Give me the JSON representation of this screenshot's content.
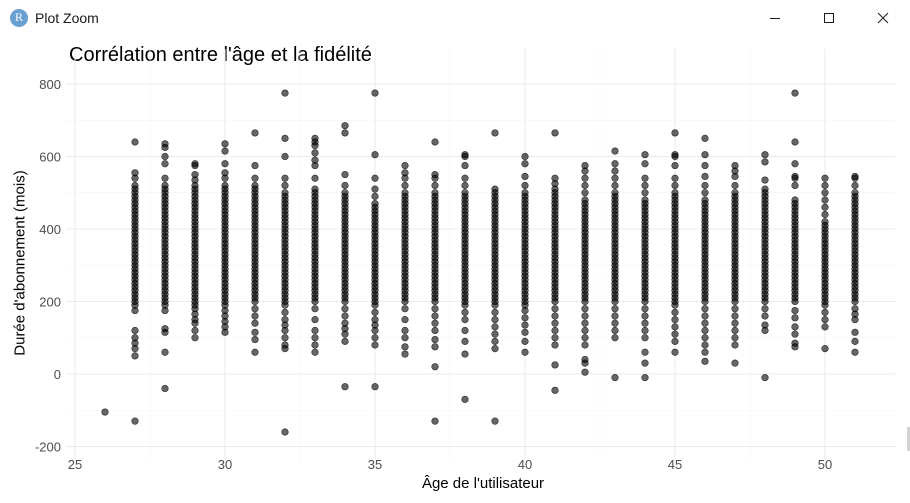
{
  "window": {
    "title": "Plot Zoom",
    "app_icon_letter": "R",
    "controls": [
      "minimize",
      "maximize",
      "close"
    ]
  },
  "chart_data": {
    "type": "scatter",
    "title": "Corrélation entre l'âge et la fidélité",
    "xlabel": "Âge de l'utilisateur",
    "ylabel": "Durée d'abonnement (mois)",
    "xlim": [
      25,
      52
    ],
    "ylim": [
      -200,
      800
    ],
    "xticks": [
      25,
      30,
      35,
      40,
      45,
      50
    ],
    "yticks": [
      -200,
      0,
      200,
      400,
      600,
      800
    ],
    "grid": true,
    "point_color": "#000000",
    "point_opacity": 0.6,
    "points_by_age": [
      {
        "x": 26,
        "y": [
          -105
        ]
      },
      {
        "x": 27,
        "y": [
          -130,
          50,
          70,
          85,
          100,
          120,
          175,
          190,
          200,
          210,
          220,
          230,
          240,
          250,
          260,
          270,
          280,
          290,
          300,
          310,
          320,
          330,
          340,
          350,
          360,
          370,
          380,
          390,
          400,
          410,
          420,
          430,
          440,
          450,
          460,
          470,
          480,
          490,
          500,
          510,
          520,
          540,
          555,
          640
        ]
      },
      {
        "x": 28,
        "y": [
          -40,
          60,
          115,
          125,
          175,
          190,
          200,
          210,
          220,
          230,
          240,
          250,
          260,
          270,
          280,
          290,
          300,
          310,
          320,
          330,
          340,
          350,
          360,
          370,
          380,
          390,
          400,
          410,
          420,
          430,
          440,
          450,
          460,
          470,
          480,
          490,
          500,
          510,
          520,
          540,
          580,
          600,
          625,
          635
        ]
      },
      {
        "x": 29,
        "y": [
          100,
          120,
          140,
          150,
          165,
          180,
          190,
          200,
          210,
          220,
          230,
          240,
          250,
          260,
          270,
          280,
          290,
          300,
          310,
          320,
          330,
          340,
          350,
          360,
          370,
          380,
          390,
          400,
          410,
          420,
          430,
          440,
          450,
          460,
          470,
          480,
          490,
          500,
          510,
          520,
          535,
          550,
          575,
          580
        ]
      },
      {
        "x": 30,
        "y": [
          115,
          130,
          145,
          160,
          175,
          190,
          200,
          210,
          220,
          230,
          240,
          250,
          260,
          270,
          280,
          290,
          300,
          310,
          320,
          330,
          340,
          350,
          360,
          370,
          380,
          390,
          400,
          410,
          420,
          430,
          440,
          450,
          460,
          470,
          480,
          490,
          500,
          510,
          520,
          540,
          555,
          580,
          615,
          635
        ]
      },
      {
        "x": 31,
        "y": [
          60,
          95,
          115,
          140,
          160,
          180,
          200,
          210,
          220,
          230,
          240,
          250,
          260,
          270,
          280,
          290,
          300,
          310,
          320,
          330,
          340,
          350,
          360,
          370,
          380,
          390,
          400,
          410,
          420,
          430,
          440,
          450,
          460,
          470,
          480,
          490,
          500,
          510,
          520,
          540,
          575,
          665
        ]
      },
      {
        "x": 32,
        "y": [
          -160,
          70,
          80,
          100,
          120,
          135,
          150,
          170,
          190,
          200,
          210,
          220,
          230,
          240,
          250,
          260,
          270,
          280,
          290,
          300,
          310,
          320,
          330,
          340,
          350,
          360,
          370,
          380,
          390,
          400,
          410,
          420,
          430,
          440,
          450,
          460,
          470,
          480,
          490,
          500,
          520,
          540,
          600,
          650,
          775
        ]
      },
      {
        "x": 33,
        "y": [
          60,
          80,
          100,
          120,
          150,
          180,
          200,
          210,
          220,
          230,
          240,
          250,
          260,
          270,
          280,
          290,
          300,
          310,
          320,
          330,
          340,
          350,
          360,
          370,
          380,
          390,
          400,
          410,
          420,
          430,
          440,
          450,
          460,
          470,
          480,
          490,
          500,
          510,
          540,
          575,
          590,
          610,
          630,
          640,
          650
        ]
      },
      {
        "x": 34,
        "y": [
          -35,
          90,
          110,
          125,
          140,
          160,
          180,
          200,
          210,
          220,
          230,
          240,
          250,
          260,
          270,
          280,
          290,
          300,
          310,
          320,
          330,
          340,
          350,
          360,
          370,
          380,
          390,
          400,
          410,
          420,
          430,
          440,
          450,
          460,
          470,
          480,
          490,
          500,
          520,
          550,
          665,
          685
        ]
      },
      {
        "x": 35,
        "y": [
          -35,
          80,
          100,
          120,
          135,
          150,
          170,
          190,
          200,
          210,
          220,
          230,
          240,
          250,
          260,
          270,
          280,
          290,
          300,
          310,
          320,
          330,
          340,
          350,
          360,
          370,
          380,
          390,
          400,
          410,
          420,
          430,
          440,
          450,
          460,
          470,
          490,
          510,
          540,
          605,
          775
        ]
      },
      {
        "x": 36,
        "y": [
          55,
          75,
          100,
          120,
          150,
          180,
          200,
          210,
          220,
          230,
          240,
          250,
          260,
          270,
          280,
          290,
          300,
          310,
          320,
          330,
          340,
          350,
          360,
          370,
          380,
          390,
          400,
          410,
          420,
          430,
          440,
          450,
          460,
          470,
          480,
          490,
          500,
          520,
          540,
          555,
          575
        ]
      },
      {
        "x": 37,
        "y": [
          -130,
          20,
          75,
          95,
          120,
          140,
          160,
          180,
          200,
          210,
          220,
          230,
          240,
          250,
          260,
          270,
          280,
          290,
          300,
          310,
          320,
          330,
          340,
          350,
          360,
          370,
          380,
          390,
          400,
          410,
          420,
          430,
          440,
          450,
          460,
          470,
          480,
          490,
          500,
          520,
          540,
          550,
          640
        ]
      },
      {
        "x": 38,
        "y": [
          -70,
          55,
          90,
          120,
          150,
          170,
          190,
          200,
          210,
          220,
          230,
          240,
          250,
          260,
          270,
          280,
          290,
          300,
          310,
          320,
          330,
          340,
          350,
          360,
          370,
          380,
          390,
          400,
          410,
          420,
          430,
          440,
          450,
          460,
          470,
          480,
          490,
          500,
          520,
          540,
          575,
          600,
          605
        ]
      },
      {
        "x": 39,
        "y": [
          -130,
          70,
          90,
          110,
          130,
          150,
          170,
          190,
          200,
          210,
          220,
          230,
          240,
          250,
          260,
          270,
          280,
          290,
          300,
          310,
          320,
          330,
          340,
          350,
          360,
          370,
          380,
          390,
          400,
          410,
          420,
          430,
          440,
          450,
          460,
          470,
          480,
          490,
          500,
          510,
          665
        ]
      },
      {
        "x": 40,
        "y": [
          60,
          90,
          115,
          135,
          155,
          175,
          190,
          200,
          210,
          220,
          230,
          240,
          250,
          260,
          270,
          280,
          290,
          300,
          310,
          320,
          330,
          340,
          350,
          360,
          370,
          380,
          390,
          400,
          410,
          420,
          430,
          440,
          450,
          460,
          470,
          480,
          490,
          500,
          520,
          545,
          580,
          600
        ]
      },
      {
        "x": 41,
        "y": [
          -45,
          25,
          80,
          100,
          120,
          140,
          160,
          180,
          200,
          210,
          220,
          230,
          240,
          250,
          260,
          270,
          280,
          290,
          300,
          310,
          320,
          330,
          340,
          350,
          360,
          370,
          380,
          390,
          400,
          410,
          420,
          430,
          440,
          450,
          460,
          470,
          480,
          490,
          500,
          510,
          525,
          540,
          665
        ]
      },
      {
        "x": 42,
        "y": [
          5,
          30,
          40,
          80,
          100,
          120,
          140,
          160,
          180,
          200,
          210,
          220,
          230,
          240,
          250,
          260,
          270,
          280,
          290,
          300,
          310,
          320,
          330,
          340,
          350,
          360,
          370,
          380,
          390,
          400,
          410,
          420,
          430,
          440,
          450,
          460,
          470,
          480,
          500,
          520,
          540,
          560,
          575
        ]
      },
      {
        "x": 43,
        "y": [
          -10,
          100,
          120,
          140,
          160,
          180,
          200,
          210,
          220,
          230,
          240,
          250,
          260,
          270,
          280,
          290,
          300,
          310,
          320,
          330,
          340,
          350,
          360,
          370,
          380,
          390,
          400,
          410,
          420,
          430,
          440,
          450,
          460,
          470,
          480,
          490,
          500,
          520,
          540,
          560,
          580,
          615
        ]
      },
      {
        "x": 44,
        "y": [
          -10,
          30,
          60,
          100,
          120,
          140,
          160,
          180,
          200,
          210,
          220,
          230,
          240,
          250,
          260,
          270,
          280,
          290,
          300,
          310,
          320,
          330,
          340,
          350,
          360,
          370,
          380,
          390,
          400,
          410,
          420,
          430,
          440,
          450,
          460,
          470,
          480,
          500,
          520,
          540,
          580,
          605
        ]
      },
      {
        "x": 45,
        "y": [
          60,
          90,
          110,
          130,
          150,
          170,
          190,
          200,
          210,
          220,
          230,
          240,
          250,
          260,
          270,
          280,
          290,
          300,
          310,
          320,
          330,
          340,
          350,
          360,
          370,
          380,
          390,
          400,
          410,
          420,
          430,
          440,
          450,
          460,
          470,
          480,
          490,
          500,
          520,
          540,
          575,
          600,
          605,
          665
        ]
      },
      {
        "x": 46,
        "y": [
          35,
          60,
          80,
          100,
          120,
          140,
          160,
          180,
          200,
          210,
          220,
          230,
          240,
          250,
          260,
          270,
          280,
          290,
          300,
          310,
          320,
          330,
          340,
          350,
          360,
          370,
          380,
          390,
          400,
          410,
          420,
          430,
          440,
          450,
          460,
          470,
          480,
          500,
          520,
          545,
          575,
          605,
          650
        ]
      },
      {
        "x": 47,
        "y": [
          30,
          80,
          100,
          120,
          140,
          160,
          180,
          200,
          210,
          220,
          230,
          240,
          250,
          260,
          270,
          280,
          290,
          300,
          310,
          320,
          330,
          340,
          350,
          360,
          370,
          380,
          390,
          400,
          410,
          420,
          430,
          440,
          450,
          460,
          470,
          480,
          490,
          500,
          520,
          545,
          560,
          575
        ]
      },
      {
        "x": 48,
        "y": [
          -10,
          120,
          135,
          160,
          180,
          200,
          210,
          220,
          230,
          240,
          250,
          260,
          270,
          280,
          290,
          300,
          310,
          320,
          330,
          340,
          350,
          360,
          370,
          380,
          390,
          400,
          410,
          420,
          430,
          440,
          450,
          460,
          470,
          480,
          490,
          500,
          510,
          535,
          585,
          605
        ]
      },
      {
        "x": 49,
        "y": [
          75,
          85,
          110,
          130,
          155,
          175,
          200,
          210,
          220,
          230,
          240,
          250,
          260,
          270,
          280,
          290,
          300,
          310,
          320,
          330,
          340,
          350,
          360,
          370,
          380,
          390,
          400,
          410,
          420,
          430,
          440,
          450,
          460,
          470,
          480,
          520,
          540,
          545,
          580,
          640,
          775
        ]
      },
      {
        "x": 50,
        "y": [
          70,
          130,
          150,
          170,
          190,
          200,
          210,
          220,
          230,
          240,
          250,
          260,
          270,
          280,
          290,
          300,
          310,
          320,
          330,
          340,
          350,
          360,
          370,
          380,
          390,
          400,
          410,
          420,
          440,
          460,
          480,
          500,
          520,
          540
        ]
      },
      {
        "x": 51,
        "y": [
          60,
          90,
          115,
          150,
          165,
          180,
          200,
          210,
          220,
          230,
          240,
          250,
          260,
          270,
          280,
          290,
          300,
          310,
          320,
          330,
          340,
          350,
          360,
          370,
          380,
          390,
          400,
          410,
          420,
          430,
          440,
          450,
          460,
          470,
          480,
          490,
          500,
          520,
          540,
          545
        ]
      }
    ]
  }
}
